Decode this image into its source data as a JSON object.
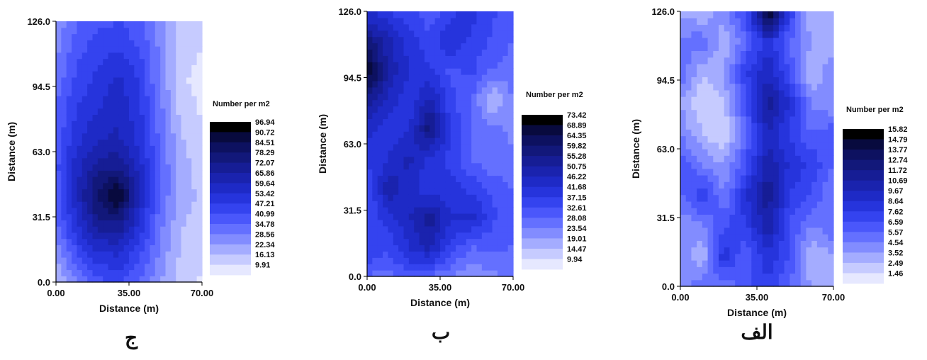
{
  "chart_data": [
    {
      "type": "heatmap",
      "panel_label": "ج",
      "xlabel": "Distance (m)",
      "ylabel": "Distance (m)",
      "xlim": [
        0,
        70
      ],
      "ylim": [
        0,
        126
      ],
      "x_ticks": [
        "0.00",
        "35.00",
        "70.00"
      ],
      "y_ticks": [
        "0.0",
        "31.5",
        "63.0",
        "94.5",
        "126.0"
      ],
      "legend_title": "Number per m2",
      "legend_levels": [
        "96.94",
        "90.72",
        "84.51",
        "78.29",
        "72.07",
        "65.86",
        "59.64",
        "53.42",
        "47.21",
        "40.99",
        "34.78",
        "28.56",
        "22.34",
        "16.13",
        "9.91"
      ],
      "x": [
        0,
        10,
        20,
        30,
        40,
        50,
        60,
        70
      ],
      "y": [
        0,
        14,
        28,
        42,
        56,
        70,
        84,
        98,
        112,
        126
      ],
      "z": [
        [
          18,
          32,
          42,
          44,
          38,
          26,
          16,
          12
        ],
        [
          28,
          44,
          55,
          58,
          46,
          30,
          18,
          14
        ],
        [
          36,
          56,
          72,
          74,
          56,
          34,
          20,
          16
        ],
        [
          40,
          62,
          84,
          96,
          62,
          38,
          22,
          18
        ],
        [
          42,
          60,
          72,
          74,
          60,
          38,
          22,
          16
        ],
        [
          40,
          54,
          62,
          64,
          54,
          36,
          20,
          14
        ],
        [
          38,
          50,
          56,
          62,
          52,
          34,
          16,
          12
        ],
        [
          34,
          46,
          52,
          58,
          50,
          30,
          14,
          11
        ],
        [
          30,
          42,
          48,
          50,
          44,
          30,
          16,
          13
        ],
        [
          26,
          38,
          42,
          44,
          40,
          28,
          18,
          15
        ]
      ]
    },
    {
      "type": "heatmap",
      "panel_label": "ب",
      "xlabel": "Distance (m)",
      "ylabel": "Distance (m)",
      "xlim": [
        0,
        70
      ],
      "ylim": [
        0,
        126
      ],
      "x_ticks": [
        "0.00",
        "35.00",
        "70.00"
      ],
      "y_ticks": [
        "0.0",
        "31.5",
        "63.0",
        "94.5",
        "126.0"
      ],
      "legend_title": "Number per m2",
      "legend_levels": [
        "73.42",
        "68.89",
        "64.35",
        "59.82",
        "55.28",
        "50.75",
        "46.22",
        "41.68",
        "37.15",
        "32.61",
        "28.08",
        "23.54",
        "19.01",
        "14.47",
        "9.94"
      ],
      "x": [
        0,
        10,
        20,
        30,
        40,
        50,
        60,
        70
      ],
      "y": [
        0,
        14,
        28,
        42,
        56,
        70,
        84,
        98,
        112,
        126
      ],
      "z": [
        [
          30,
          28,
          34,
          30,
          26,
          22,
          24,
          28
        ],
        [
          40,
          36,
          44,
          50,
          38,
          30,
          32,
          30
        ],
        [
          36,
          42,
          48,
          56,
          44,
          46,
          36,
          32
        ],
        [
          34,
          52,
          46,
          40,
          42,
          38,
          34,
          30
        ],
        [
          40,
          44,
          50,
          42,
          38,
          30,
          26,
          28
        ],
        [
          46,
          40,
          44,
          60,
          40,
          30,
          28,
          24
        ],
        [
          56,
          48,
          40,
          50,
          36,
          30,
          16,
          26
        ],
        [
          73,
          52,
          44,
          40,
          34,
          36,
          30,
          28
        ],
        [
          60,
          50,
          42,
          36,
          44,
          38,
          34,
          30
        ],
        [
          44,
          40,
          36,
          32,
          38,
          42,
          36,
          30
        ]
      ]
    },
    {
      "type": "heatmap",
      "panel_label": "الف",
      "xlabel": "Distance (m)",
      "ylabel": "Distance (m)",
      "xlim": [
        0,
        70
      ],
      "ylim": [
        0,
        126
      ],
      "x_ticks": [
        "0.00",
        "35.00",
        "70.00"
      ],
      "y_ticks": [
        "0.0",
        "31.5",
        "63.0",
        "94.5",
        "126.0"
      ],
      "legend_title": "Number per m2",
      "legend_levels": [
        "15.82",
        "14.79",
        "13.77",
        "12.74",
        "11.72",
        "10.69",
        "9.67",
        "8.64",
        "7.62",
        "6.59",
        "5.57",
        "4.54",
        "3.52",
        "2.49",
        "1.46"
      ],
      "x": [
        0,
        10,
        20,
        30,
        40,
        50,
        60,
        70
      ],
      "y": [
        0,
        14,
        28,
        42,
        56,
        70,
        84,
        98,
        112,
        126
      ],
      "z": [
        [
          4,
          6,
          5,
          7,
          8,
          6,
          4,
          3
        ],
        [
          5,
          3,
          9,
          6,
          9,
          7,
          3,
          4
        ],
        [
          4,
          5,
          7,
          8,
          11,
          7,
          5,
          6
        ],
        [
          6,
          8,
          5,
          9,
          12,
          8,
          7,
          5
        ],
        [
          7,
          5,
          4,
          7,
          11,
          9,
          8,
          6
        ],
        [
          5,
          3,
          2,
          6,
          10,
          8,
          6,
          7
        ],
        [
          4,
          2,
          3,
          7,
          12,
          9,
          5,
          4
        ],
        [
          6,
          3,
          4,
          8,
          10,
          7,
          3,
          5
        ],
        [
          5,
          6,
          3,
          6,
          9,
          6,
          4,
          3
        ],
        [
          4,
          3,
          5,
          7,
          16,
          8,
          3,
          4
        ]
      ]
    }
  ]
}
